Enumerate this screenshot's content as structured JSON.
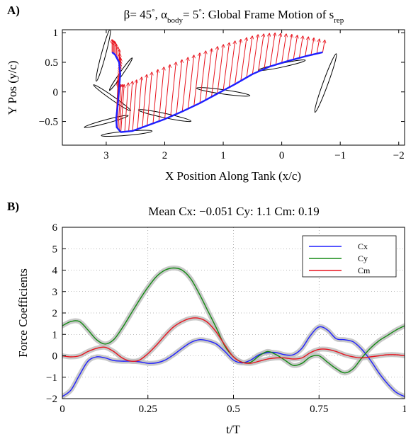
{
  "chart_data": [
    {
      "panel_label": "A)",
      "type": "line",
      "title": {
        "beta_sym": "β",
        "beta_val": "= 45",
        "deg": "°",
        "sep": ", ",
        "alpha_sym": "α",
        "alpha_sub": "body",
        "alpha_val": "= 5",
        "rest": ": Global Frame Motion of s",
        "s_sub": "rep"
      },
      "xlabel": "X Position Along Tank (x/c)",
      "ylabel": "Y Pos (y/c)",
      "xlim": [
        3.75,
        -2.1
      ],
      "ylim": [
        -0.9,
        1.05
      ],
      "xticks": [
        3,
        2,
        1,
        0,
        -1,
        -2
      ],
      "xtick_labels": [
        "3",
        "2",
        "1",
        "0",
        "−1",
        "−2"
      ],
      "yticks": [
        1,
        0.5,
        0,
        -0.5
      ],
      "ytick_labels": [
        "1",
        "0.5",
        "0",
        "−0.5"
      ],
      "colors": {
        "path": "#1f1fff",
        "arrows": "#e8141e",
        "foils": "#000000"
      },
      "path": [
        [
          -0.7,
          0.67
        ],
        [
          -0.4,
          0.6
        ],
        [
          -0.1,
          0.52
        ],
        [
          0.2,
          0.43
        ],
        [
          0.5,
          0.3
        ],
        [
          0.8,
          0.13
        ],
        [
          1.1,
          -0.03
        ],
        [
          1.4,
          -0.19
        ],
        [
          1.7,
          -0.33
        ],
        [
          2.0,
          -0.46
        ],
        [
          2.3,
          -0.57
        ],
        [
          2.55,
          -0.66
        ],
        [
          2.75,
          -0.68
        ],
        [
          2.82,
          -0.6
        ],
        [
          2.83,
          -0.45
        ],
        [
          2.8,
          -0.2
        ],
        [
          2.78,
          0.05
        ],
        [
          2.76,
          0.3
        ],
        [
          2.78,
          0.5
        ],
        [
          2.85,
          0.63
        ],
        [
          2.9,
          0.67
        ]
      ],
      "foils": [
        {
          "x": -0.75,
          "y": 0.15,
          "len": 1.1,
          "angle": 70
        },
        {
          "x": 0.0,
          "y": 0.45,
          "len": 0.85,
          "angle": 12
        },
        {
          "x": 1.0,
          "y": 0.0,
          "len": 0.95,
          "angle": -8
        },
        {
          "x": 2.0,
          "y": -0.4,
          "len": 0.95,
          "angle": -12
        },
        {
          "x": 2.9,
          "y": -0.1,
          "len": 0.8,
          "angle": -35
        },
        {
          "x": 3.0,
          "y": -0.5,
          "len": 0.8,
          "angle": 15
        },
        {
          "x": 2.65,
          "y": -0.7,
          "len": 0.9,
          "angle": 5
        },
        {
          "x": 3.05,
          "y": 0.62,
          "len": 0.95,
          "angle": 75
        },
        {
          "x": 2.75,
          "y": 0.3,
          "len": 0.7,
          "angle": 55
        }
      ]
    },
    {
      "panel_label": "B)",
      "type": "line",
      "title": "Mean Cx: −0.051  Cy: 1.1  Cm: 0.19",
      "xlabel": "t/T",
      "ylabel": "Force Coefficients",
      "xlim": [
        0,
        1
      ],
      "ylim": [
        -2,
        6
      ],
      "xticks": [
        0,
        0.25,
        0.5,
        0.75,
        1
      ],
      "xtick_labels": [
        "0",
        "0.25",
        "0.5",
        "0.75",
        "1"
      ],
      "yticks": [
        -2,
        -1,
        0,
        1,
        2,
        3,
        4,
        5,
        6
      ],
      "ytick_labels": [
        "−2",
        "−1",
        "0",
        "1",
        "2",
        "3",
        "4",
        "5",
        "6"
      ],
      "grid": true,
      "legend_position": "top-right",
      "x": [
        0,
        0.025,
        0.05,
        0.075,
        0.1,
        0.125,
        0.15,
        0.175,
        0.2,
        0.225,
        0.25,
        0.275,
        0.3,
        0.325,
        0.35,
        0.375,
        0.4,
        0.425,
        0.45,
        0.475,
        0.5,
        0.525,
        0.55,
        0.575,
        0.6,
        0.625,
        0.65,
        0.675,
        0.7,
        0.725,
        0.75,
        0.775,
        0.8,
        0.825,
        0.85,
        0.875,
        0.9,
        0.925,
        0.95,
        0.975,
        1
      ],
      "series": [
        {
          "name": "Cx",
          "color": "#1f1fff",
          "values": [
            -1.9,
            -1.6,
            -0.9,
            -0.25,
            -0.05,
            -0.1,
            -0.22,
            -0.25,
            -0.25,
            -0.28,
            -0.35,
            -0.33,
            -0.2,
            0.05,
            0.35,
            0.62,
            0.75,
            0.7,
            0.55,
            0.2,
            -0.2,
            -0.33,
            -0.2,
            0.05,
            0.15,
            0.15,
            0.05,
            0.05,
            0.35,
            0.95,
            1.35,
            1.2,
            0.8,
            0.75,
            0.65,
            0.3,
            -0.2,
            -0.8,
            -1.3,
            -1.7,
            -1.9
          ]
        },
        {
          "name": "Cy",
          "color": "#138a13",
          "values": [
            1.4,
            1.6,
            1.6,
            1.2,
            0.75,
            0.55,
            0.75,
            1.3,
            1.95,
            2.6,
            3.2,
            3.7,
            4.0,
            4.1,
            4.0,
            3.6,
            2.9,
            2.1,
            1.3,
            0.45,
            -0.05,
            -0.3,
            -0.3,
            0.0,
            0.2,
            0.05,
            -0.2,
            -0.45,
            -0.35,
            -0.05,
            0.0,
            -0.3,
            -0.6,
            -0.8,
            -0.6,
            -0.1,
            0.35,
            0.7,
            0.95,
            1.2,
            1.4
          ]
        },
        {
          "name": "Cm",
          "color": "#e8141e",
          "values": [
            0.0,
            -0.05,
            0.0,
            0.2,
            0.35,
            0.4,
            0.2,
            -0.1,
            -0.25,
            -0.2,
            0.1,
            0.5,
            0.95,
            1.35,
            1.6,
            1.75,
            1.75,
            1.55,
            1.1,
            0.5,
            -0.05,
            -0.3,
            -0.35,
            -0.25,
            -0.15,
            -0.1,
            -0.1,
            -0.15,
            -0.1,
            0.15,
            0.3,
            0.3,
            0.2,
            0.05,
            -0.05,
            -0.1,
            -0.05,
            0.0,
            0.05,
            0.05,
            0.0
          ]
        }
      ]
    }
  ]
}
